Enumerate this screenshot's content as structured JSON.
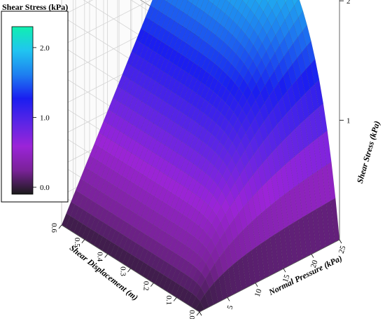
{
  "chart_data": {
    "type": "surface3d",
    "title": "",
    "zlabel": "Shear Stress (kPa)",
    "xlabel": "Normal Pressure (kPa)",
    "ylabel": "Shear Displacement (m)",
    "x_ticks": [
      "0",
      "5",
      "10",
      "15",
      "20",
      "25"
    ],
    "y_ticks": [
      "0.0",
      "0.1",
      "0.2",
      "0.3",
      "0.4",
      "0.5",
      "0.6"
    ],
    "z_ticks": [
      "1",
      "2"
    ],
    "xlim": [
      0,
      25
    ],
    "ylim": [
      0,
      0.6
    ],
    "zlim": [
      0,
      2.3
    ],
    "surface_points": [
      {
        "normal_pressure": 0,
        "shear_displacement": 0.0,
        "shear_stress": 0.0
      },
      {
        "normal_pressure": 0,
        "shear_displacement": 0.6,
        "shear_stress": 0.0
      },
      {
        "normal_pressure": 25,
        "shear_displacement": 0.0,
        "shear_stress": 0.0
      },
      {
        "normal_pressure": 25,
        "shear_displacement": 0.1,
        "shear_stress": 1.75
      },
      {
        "normal_pressure": 25,
        "shear_displacement": 0.6,
        "shear_stress": 2.3
      }
    ],
    "grid": true,
    "colorscale": [
      "#1a1a1a",
      "#7a2299",
      "#9b24d8",
      "#5a25e6",
      "#1a1ef0",
      "#1e7ff0",
      "#20c5f0",
      "#10f0b0"
    ],
    "colorbar": {
      "title": "Shear Stress (kPa)",
      "ticks": [
        "0.0",
        "1.0",
        "2.0"
      ],
      "tick_values": [
        0.0,
        1.0,
        2.0
      ],
      "range": [
        -0.1,
        2.3
      ],
      "placement": "top-left"
    }
  }
}
